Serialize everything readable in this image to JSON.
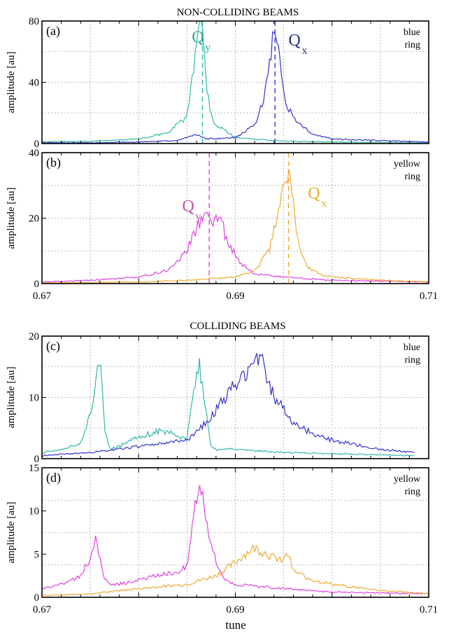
{
  "chart_data": [
    {
      "type": "line",
      "figure_title": "NON-COLLIDING BEAMS",
      "panel_label": "(a)",
      "ring_label": [
        "blue",
        "ring"
      ],
      "ylabel": "amplitude [au]",
      "xlabel": "",
      "xlim": [
        0.67,
        0.71
      ],
      "ylim": [
        0,
        80
      ],
      "yticks": [
        0,
        40,
        80
      ],
      "grid": true,
      "peak_labels": [
        {
          "main": "Q",
          "sub": "y",
          "x": 0.6855,
          "y": 66,
          "color": "#3aa89a"
        },
        {
          "main": "Q",
          "sub": "x",
          "x": 0.6955,
          "y": 64,
          "color": "#2a2f8c"
        }
      ],
      "markers": [
        {
          "x": 0.6866,
          "color": "#2fb8a8"
        },
        {
          "x": 0.6941,
          "color": "#3333cc"
        }
      ],
      "series": [
        {
          "color": "#2fb8a8",
          "x": [
            0.67,
            0.675,
            0.68,
            0.683,
            0.685,
            0.6858,
            0.6862,
            0.6866,
            0.687,
            0.6875,
            0.688,
            0.69,
            0.695,
            0.7,
            0.71
          ],
          "y": [
            1,
            1.5,
            3,
            7,
            18,
            55,
            72,
            78,
            38,
            18,
            12,
            4,
            1.5,
            1,
            0.5
          ]
        },
        {
          "color": "#3333cc",
          "x": [
            0.67,
            0.675,
            0.68,
            0.684,
            0.686,
            0.687,
            0.69,
            0.692,
            0.693,
            0.6935,
            0.694,
            0.6945,
            0.695,
            0.696,
            0.698,
            0.7,
            0.705,
            0.71
          ],
          "y": [
            0.5,
            0.5,
            1,
            2,
            6,
            3,
            4,
            12,
            30,
            52,
            72,
            58,
            30,
            16,
            6,
            3,
            2,
            1
          ]
        }
      ]
    },
    {
      "type": "line",
      "panel_label": "(b)",
      "ring_label": [
        "yellow",
        "ring"
      ],
      "ylabel": "amplitude [au]",
      "xlabel": "",
      "xlim": [
        0.67,
        0.71
      ],
      "ylim": [
        0,
        40
      ],
      "yticks": [
        0,
        20,
        40
      ],
      "xticks": [
        "0.67",
        "0.69",
        "0.71"
      ],
      "grid": true,
      "peak_labels": [
        {
          "main": "Q",
          "sub": "y",
          "x": 0.6845,
          "y": 22,
          "color": "#c050a8"
        },
        {
          "main": "Q",
          "sub": "x",
          "x": 0.6975,
          "y": 26,
          "color": "#e8b020"
        }
      ],
      "markers": [
        {
          "x": 0.6873,
          "color": "#e040e0"
        },
        {
          "x": 0.6955,
          "color": "#f0a830"
        }
      ],
      "series": [
        {
          "color": "#e040e0",
          "x": [
            0.67,
            0.675,
            0.68,
            0.683,
            0.685,
            0.686,
            0.6868,
            0.6873,
            0.6878,
            0.6885,
            0.689,
            0.6905,
            0.692,
            0.695,
            0.7,
            0.71
          ],
          "y": [
            0.5,
            1,
            2,
            4,
            10,
            17,
            20,
            22,
            19,
            21,
            14,
            6,
            3,
            2,
            1,
            0.5
          ]
        },
        {
          "color": "#f0a830",
          "x": [
            0.67,
            0.68,
            0.685,
            0.69,
            0.692,
            0.6935,
            0.6945,
            0.695,
            0.6955,
            0.696,
            0.6965,
            0.6975,
            0.699,
            0.7,
            0.705,
            0.71
          ],
          "y": [
            0.2,
            0.5,
            1,
            2,
            4,
            10,
            22,
            30,
            33,
            24,
            12,
            5,
            2.5,
            2,
            1,
            0.5
          ]
        }
      ]
    },
    {
      "type": "line",
      "figure_title": "COLLIDING BEAMS",
      "panel_label": "(c)",
      "ring_label": [
        "blue",
        "ring"
      ],
      "ylabel": "amplitude [au]",
      "xlabel": "",
      "xlim": [
        0.67,
        0.71
      ],
      "ylim": [
        0,
        20
      ],
      "yticks": [
        0,
        10,
        20
      ],
      "grid": true,
      "peak_labels": [],
      "markers": [],
      "series": [
        {
          "color": "#2fb8a8",
          "x": [
            0.67,
            0.672,
            0.674,
            0.675,
            0.6755,
            0.676,
            0.6765,
            0.677,
            0.678,
            0.68,
            0.682,
            0.684,
            0.685,
            0.6855,
            0.6862,
            0.6868,
            0.6875,
            0.688,
            0.69,
            0.695,
            0.7,
            0.7085
          ],
          "y": [
            1,
            1.5,
            2.5,
            7,
            12,
            17,
            5,
            1.5,
            2,
            3.5,
            4.5,
            4,
            3,
            10,
            16,
            10,
            2,
            1.5,
            1.5,
            1,
            0.8,
            0.5
          ]
        },
        {
          "color": "#3333cc",
          "x": [
            0.67,
            0.675,
            0.68,
            0.685,
            0.687,
            0.689,
            0.691,
            0.692,
            0.6925,
            0.693,
            0.694,
            0.696,
            0.698,
            0.7,
            0.705,
            0.7085
          ],
          "y": [
            0.5,
            1,
            2,
            3,
            6,
            10,
            14,
            16,
            17,
            15,
            10,
            6,
            4,
            3,
            1.5,
            1
          ]
        }
      ]
    },
    {
      "type": "line",
      "panel_label": "(d)",
      "ring_label": [
        "yellow",
        "ring"
      ],
      "ylabel": "amplitude [au]",
      "xlabel": "tune",
      "xlim": [
        0.67,
        0.71
      ],
      "ylim": [
        0,
        15
      ],
      "yticks": [
        0,
        5,
        10,
        15
      ],
      "xticks": [
        "0.67",
        "0.69",
        "0.71"
      ],
      "grid": true,
      "peak_labels": [],
      "markers": [],
      "series": [
        {
          "color": "#e040e0",
          "x": [
            0.67,
            0.672,
            0.674,
            0.675,
            0.6755,
            0.676,
            0.6765,
            0.677,
            0.678,
            0.68,
            0.682,
            0.684,
            0.685,
            0.6855,
            0.686,
            0.6865,
            0.6872,
            0.688,
            0.689,
            0.69,
            0.695,
            0.7,
            0.71
          ],
          "y": [
            1,
            1.5,
            2.5,
            4.5,
            6.5,
            5,
            2,
            1.5,
            1.5,
            2,
            2.5,
            3,
            3.5,
            8,
            12,
            13,
            8,
            4,
            2,
            1.5,
            1,
            0.6,
            0.4
          ]
        },
        {
          "color": "#f0a830",
          "x": [
            0.67,
            0.675,
            0.68,
            0.685,
            0.688,
            0.69,
            0.691,
            0.692,
            0.693,
            0.694,
            0.695,
            0.6955,
            0.696,
            0.698,
            0.7,
            0.705,
            0.71
          ],
          "y": [
            0.2,
            0.4,
            1,
            1.5,
            2.5,
            4,
            5,
            5.7,
            5.2,
            4.5,
            4.5,
            5,
            3,
            2,
            1.5,
            0.8,
            0.4
          ]
        }
      ]
    }
  ]
}
